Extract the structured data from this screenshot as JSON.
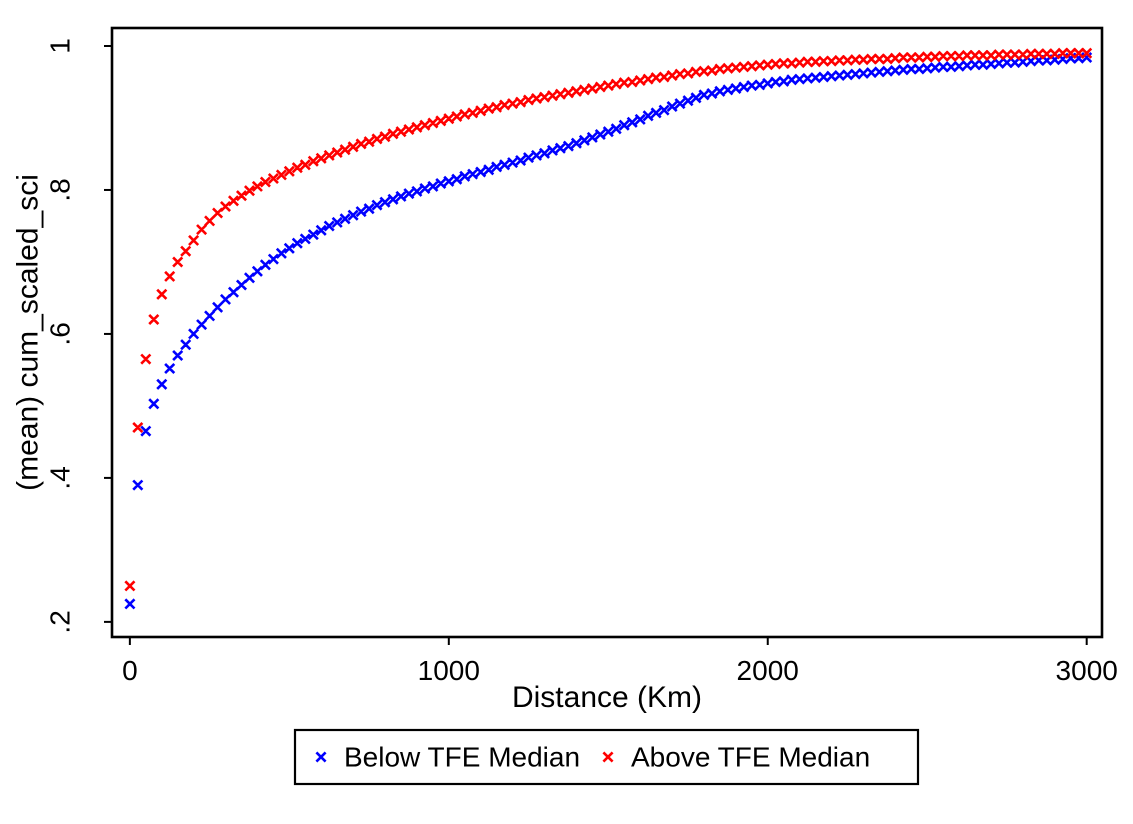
{
  "figure": {
    "background": "#ffffff",
    "frame_color": "#000000",
    "text_color": "#000000"
  },
  "chart_data": {
    "type": "scatter",
    "marker": "x",
    "title": "",
    "xlabel": "Distance (Km)",
    "ylabel": "(mean) cum_scaled_sci",
    "xlim": [
      -56,
      3048
    ],
    "ylim": [
      0.179,
      1.025
    ],
    "grid": false,
    "x_ticks": [
      {
        "v": 0,
        "label": "0"
      },
      {
        "v": 1000,
        "label": "1000"
      },
      {
        "v": 2000,
        "label": "2000"
      },
      {
        "v": 3000,
        "label": "3000"
      }
    ],
    "y_ticks": [
      {
        "v": 0.2,
        "label": ".2"
      },
      {
        "v": 0.4,
        "label": ".4"
      },
      {
        "v": 0.6,
        "label": ".6"
      },
      {
        "v": 0.8,
        "label": ".8"
      },
      {
        "v": 1.0,
        "label": "1"
      }
    ],
    "x_start": 0,
    "x_step": 25,
    "x_end": 3000,
    "legend": {
      "position": "bottom",
      "boxed": true
    },
    "series": [
      {
        "name": "Below TFE Median",
        "color": "#0000ff",
        "values": [
          0.225,
          0.39,
          0.465,
          0.503,
          0.53,
          0.552,
          0.57,
          0.585,
          0.6,
          0.613,
          0.625,
          0.637,
          0.648,
          0.658,
          0.668,
          0.678,
          0.687,
          0.696,
          0.704,
          0.712,
          0.719,
          0.726,
          0.732,
          0.738,
          0.744,
          0.75,
          0.755,
          0.76,
          0.765,
          0.77,
          0.774,
          0.779,
          0.783,
          0.787,
          0.791,
          0.795,
          0.798,
          0.802,
          0.805,
          0.809,
          0.812,
          0.815,
          0.819,
          0.822,
          0.825,
          0.828,
          0.832,
          0.835,
          0.838,
          0.841,
          0.845,
          0.848,
          0.851,
          0.855,
          0.858,
          0.861,
          0.865,
          0.869,
          0.873,
          0.877,
          0.881,
          0.885,
          0.89,
          0.894,
          0.898,
          0.903,
          0.907,
          0.911,
          0.916,
          0.92,
          0.924,
          0.928,
          0.932,
          0.934,
          0.937,
          0.939,
          0.941,
          0.943,
          0.945,
          0.946,
          0.948,
          0.95,
          0.951,
          0.953,
          0.954,
          0.955,
          0.956,
          0.957,
          0.958,
          0.959,
          0.96,
          0.961,
          0.962,
          0.963,
          0.964,
          0.965,
          0.966,
          0.967,
          0.968,
          0.968,
          0.969,
          0.97,
          0.971,
          0.971,
          0.972,
          0.973,
          0.974,
          0.974,
          0.975,
          0.976,
          0.977,
          0.977,
          0.978,
          0.979,
          0.98,
          0.98,
          0.981,
          0.982,
          0.983,
          0.983,
          0.984
        ]
      },
      {
        "name": "Above TFE Median",
        "color": "#ff0000",
        "values": [
          0.25,
          0.47,
          0.565,
          0.62,
          0.655,
          0.68,
          0.7,
          0.715,
          0.73,
          0.745,
          0.757,
          0.768,
          0.777,
          0.785,
          0.792,
          0.799,
          0.805,
          0.811,
          0.816,
          0.821,
          0.826,
          0.831,
          0.835,
          0.84,
          0.844,
          0.848,
          0.852,
          0.856,
          0.86,
          0.864,
          0.867,
          0.871,
          0.874,
          0.878,
          0.881,
          0.884,
          0.887,
          0.89,
          0.893,
          0.896,
          0.899,
          0.902,
          0.905,
          0.907,
          0.91,
          0.913,
          0.915,
          0.918,
          0.92,
          0.922,
          0.925,
          0.927,
          0.929,
          0.931,
          0.933,
          0.935,
          0.937,
          0.939,
          0.941,
          0.943,
          0.945,
          0.947,
          0.949,
          0.95,
          0.952,
          0.954,
          0.956,
          0.957,
          0.959,
          0.961,
          0.962,
          0.964,
          0.965,
          0.966,
          0.968,
          0.969,
          0.97,
          0.971,
          0.972,
          0.973,
          0.974,
          0.975,
          0.976,
          0.976,
          0.977,
          0.978,
          0.978,
          0.979,
          0.979,
          0.98,
          0.98,
          0.981,
          0.981,
          0.982,
          0.982,
          0.982,
          0.983,
          0.984,
          0.984,
          0.984,
          0.985,
          0.985,
          0.986,
          0.986,
          0.986,
          0.987,
          0.987,
          0.987,
          0.987,
          0.988,
          0.988,
          0.988,
          0.988,
          0.989,
          0.989,
          0.989,
          0.989,
          0.99,
          0.99,
          0.99,
          0.99
        ]
      }
    ]
  }
}
